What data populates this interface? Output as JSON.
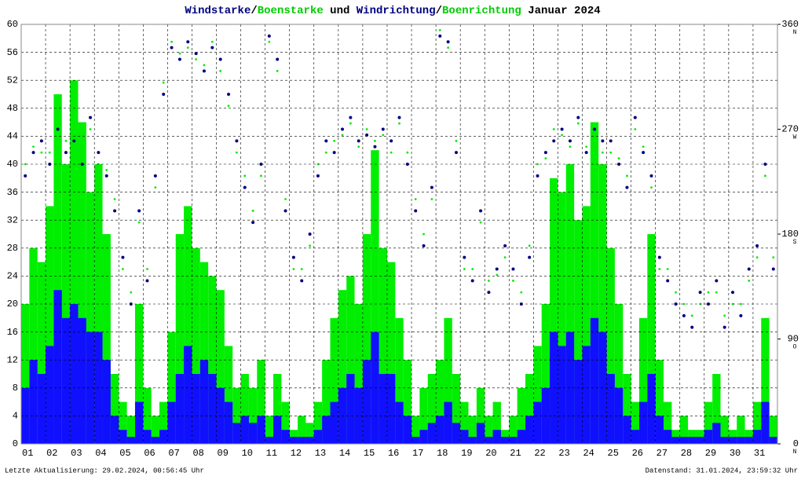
{
  "chart_data": {
    "type": "wind",
    "title_parts": [
      {
        "text": "Windstarke",
        "color": "#000080"
      },
      {
        "text": "/",
        "color": "#000000"
      },
      {
        "text": "Boenstarke",
        "color": "#00cc00"
      },
      {
        "text": " und ",
        "color": "#000000"
      },
      {
        "text": "Windrichtung",
        "color": "#000080"
      },
      {
        "text": "/",
        "color": "#000000"
      },
      {
        "text": "Boenrichtung",
        "color": "#00cc00"
      },
      {
        "text": " Januar 2024",
        "color": "#000000"
      }
    ],
    "footer_left": "Letzte Aktualisierung: 29.02.2024, 00:56:45 Uhr",
    "footer_right": "Datenstand: 31.01.2024, 23:59:32 Uhr",
    "xlim": [
      0,
      744
    ],
    "xticks": [
      {
        "value": 0,
        "label": "01"
      },
      {
        "value": 24,
        "label": "02"
      },
      {
        "value": 48,
        "label": "03"
      },
      {
        "value": 72,
        "label": "04"
      },
      {
        "value": 96,
        "label": "05"
      },
      {
        "value": 120,
        "label": "06"
      },
      {
        "value": 144,
        "label": "07"
      },
      {
        "value": 168,
        "label": "08"
      },
      {
        "value": 192,
        "label": "09"
      },
      {
        "value": 216,
        "label": "10"
      },
      {
        "value": 240,
        "label": "11"
      },
      {
        "value": 264,
        "label": "12"
      },
      {
        "value": 288,
        "label": "13"
      },
      {
        "value": 312,
        "label": "14"
      },
      {
        "value": 336,
        "label": "15"
      },
      {
        "value": 360,
        "label": "16"
      },
      {
        "value": 384,
        "label": "17"
      },
      {
        "value": 408,
        "label": "18"
      },
      {
        "value": 432,
        "label": "19"
      },
      {
        "value": 456,
        "label": "20"
      },
      {
        "value": 480,
        "label": "21"
      },
      {
        "value": 504,
        "label": "22"
      },
      {
        "value": 528,
        "label": "23"
      },
      {
        "value": 552,
        "label": "24"
      },
      {
        "value": 576,
        "label": "25"
      },
      {
        "value": 600,
        "label": "26"
      },
      {
        "value": 624,
        "label": "27"
      },
      {
        "value": 648,
        "label": "28"
      },
      {
        "value": 672,
        "label": "29"
      },
      {
        "value": 696,
        "label": "30"
      },
      {
        "value": 720,
        "label": "31"
      }
    ],
    "ylim": [
      0,
      60
    ],
    "yticks": [
      0,
      4,
      8,
      12,
      16,
      20,
      24,
      28,
      32,
      36,
      40,
      44,
      48,
      52,
      56,
      60
    ],
    "y2lim": [
      0,
      360
    ],
    "y2ticks": [
      0,
      90,
      180,
      270,
      360
    ],
    "y2tick_compass": [
      "N",
      "O",
      "S",
      "W",
      "N"
    ],
    "grid": true,
    "x": [
      0,
      8,
      16,
      24,
      32,
      40,
      48,
      56,
      64,
      72,
      80,
      88,
      96,
      104,
      112,
      120,
      128,
      136,
      144,
      152,
      160,
      168,
      176,
      184,
      192,
      200,
      208,
      216,
      224,
      232,
      240,
      248,
      256,
      264,
      272,
      280,
      288,
      296,
      304,
      312,
      320,
      328,
      336,
      344,
      352,
      360,
      368,
      376,
      384,
      392,
      400,
      408,
      416,
      424,
      432,
      440,
      448,
      456,
      464,
      472,
      480,
      488,
      496,
      504,
      512,
      520,
      528,
      536,
      544,
      552,
      560,
      568,
      576,
      584,
      592,
      600,
      608,
      616,
      624,
      632,
      640,
      648,
      656,
      664,
      672,
      680,
      688,
      696,
      704,
      712,
      720,
      728,
      736
    ],
    "series": [
      {
        "name": "Boenstarke",
        "kind": "bar",
        "color": "#00ee00",
        "values": [
          20,
          28,
          26,
          34,
          50,
          40,
          52,
          46,
          36,
          40,
          30,
          10,
          6,
          4,
          20,
          8,
          4,
          6,
          16,
          30,
          34,
          28,
          26,
          24,
          22,
          14,
          8,
          10,
          8,
          12,
          4,
          10,
          6,
          2,
          4,
          3,
          6,
          12,
          18,
          22,
          24,
          20,
          30,
          42,
          28,
          26,
          18,
          12,
          4,
          8,
          10,
          12,
          18,
          10,
          6,
          4,
          8,
          4,
          6,
          2,
          4,
          8,
          10,
          14,
          20,
          38,
          36,
          40,
          32,
          34,
          46,
          40,
          28,
          20,
          10,
          6,
          18,
          30,
          12,
          6,
          2,
          4,
          2,
          2,
          6,
          10,
          4,
          2,
          4,
          2,
          6,
          18,
          4
        ]
      },
      {
        "name": "Windstarke",
        "kind": "bar",
        "color": "#1010ff",
        "values": [
          8,
          12,
          10,
          14,
          22,
          18,
          20,
          18,
          16,
          16,
          12,
          4,
          2,
          1,
          6,
          2,
          1,
          2,
          6,
          10,
          14,
          10,
          12,
          10,
          8,
          6,
          3,
          4,
          3,
          4,
          1,
          4,
          2,
          1,
          1,
          1,
          2,
          4,
          6,
          8,
          10,
          8,
          12,
          16,
          10,
          10,
          6,
          4,
          1,
          2,
          3,
          4,
          6,
          3,
          2,
          1,
          3,
          1,
          2,
          1,
          1,
          2,
          4,
          6,
          8,
          16,
          14,
          16,
          12,
          14,
          18,
          16,
          10,
          8,
          4,
          2,
          6,
          10,
          4,
          2,
          1,
          1,
          1,
          1,
          2,
          3,
          1,
          1,
          1,
          1,
          2,
          6,
          1
        ]
      },
      {
        "name": "Windrichtung",
        "kind": "dir",
        "axis": "y2",
        "color": "#000080",
        "values": [
          230,
          250,
          260,
          240,
          270,
          250,
          260,
          240,
          280,
          250,
          230,
          200,
          160,
          120,
          200,
          140,
          230,
          300,
          340,
          330,
          345,
          335,
          320,
          340,
          330,
          300,
          260,
          220,
          190,
          240,
          350,
          330,
          200,
          160,
          140,
          180,
          230,
          260,
          250,
          270,
          280,
          260,
          265,
          255,
          270,
          260,
          280,
          240,
          200,
          170,
          220,
          350,
          345,
          250,
          160,
          140,
          200,
          130,
          150,
          170,
          150,
          120,
          160,
          230,
          250,
          260,
          270,
          260,
          280,
          250,
          270,
          260,
          260,
          240,
          220,
          280,
          250,
          230,
          160,
          140,
          120,
          110,
          100,
          130,
          120,
          140,
          100,
          130,
          110,
          150,
          170,
          240,
          150
        ]
      },
      {
        "name": "Boenrichtung",
        "kind": "dir",
        "axis": "y2",
        "color": "#00ee00",
        "values": [
          240,
          255,
          250,
          250,
          260,
          260,
          270,
          245,
          270,
          240,
          235,
          210,
          150,
          130,
          190,
          150,
          220,
          310,
          345,
          335,
          340,
          330,
          325,
          345,
          320,
          290,
          250,
          230,
          200,
          230,
          345,
          320,
          210,
          150,
          150,
          170,
          240,
          250,
          260,
          265,
          275,
          255,
          270,
          260,
          265,
          250,
          275,
          250,
          210,
          180,
          210,
          355,
          340,
          260,
          150,
          150,
          190,
          140,
          145,
          160,
          140,
          130,
          170,
          240,
          245,
          270,
          265,
          255,
          275,
          255,
          265,
          250,
          250,
          245,
          230,
          270,
          255,
          220,
          150,
          150,
          130,
          120,
          110,
          120,
          130,
          130,
          110,
          120,
          120,
          140,
          160,
          230,
          160
        ]
      }
    ]
  }
}
